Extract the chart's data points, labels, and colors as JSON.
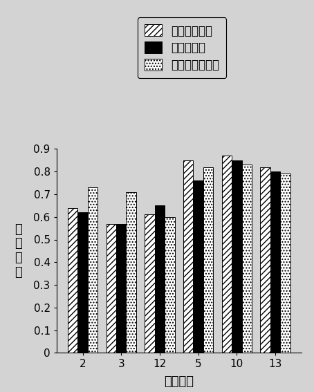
{
  "categories": [
    "2",
    "3",
    "12",
    "5",
    "10",
    "13"
  ],
  "series": {
    "相对干物质重": [
      0.64,
      0.57,
      0.61,
      0.85,
      0.87,
      0.82
    ],
    "相对含氮量": [
      0.62,
      0.57,
      0.65,
      0.76,
      0.85,
      0.8
    ],
    "相对叶绿素含量": [
      0.73,
      0.71,
      0.6,
      0.82,
      0.83,
      0.79
    ]
  },
  "bar_patterns": [
    "////",
    "",
    "...."
  ],
  "bar_colors": [
    "white",
    "black",
    "white"
  ],
  "bar_edge_colors": [
    "black",
    "black",
    "black"
  ],
  "legend_labels": [
    "相对干物质重",
    "相对含氮量",
    "相对叶绿素含量"
  ],
  "legend_patterns": [
    "////",
    "",
    "...."
  ],
  "xlabel": "品种编号",
  "ylabel": "相\n对\n比\n值",
  "ylim": [
    0,
    0.9
  ],
  "yticks": [
    0,
    0.1,
    0.2,
    0.3,
    0.4,
    0.5,
    0.6,
    0.7,
    0.8,
    0.9
  ],
  "label_fontsize": 13,
  "tick_fontsize": 11,
  "legend_fontsize": 12,
  "bar_width": 0.26,
  "background_color": "#d3d3d3"
}
